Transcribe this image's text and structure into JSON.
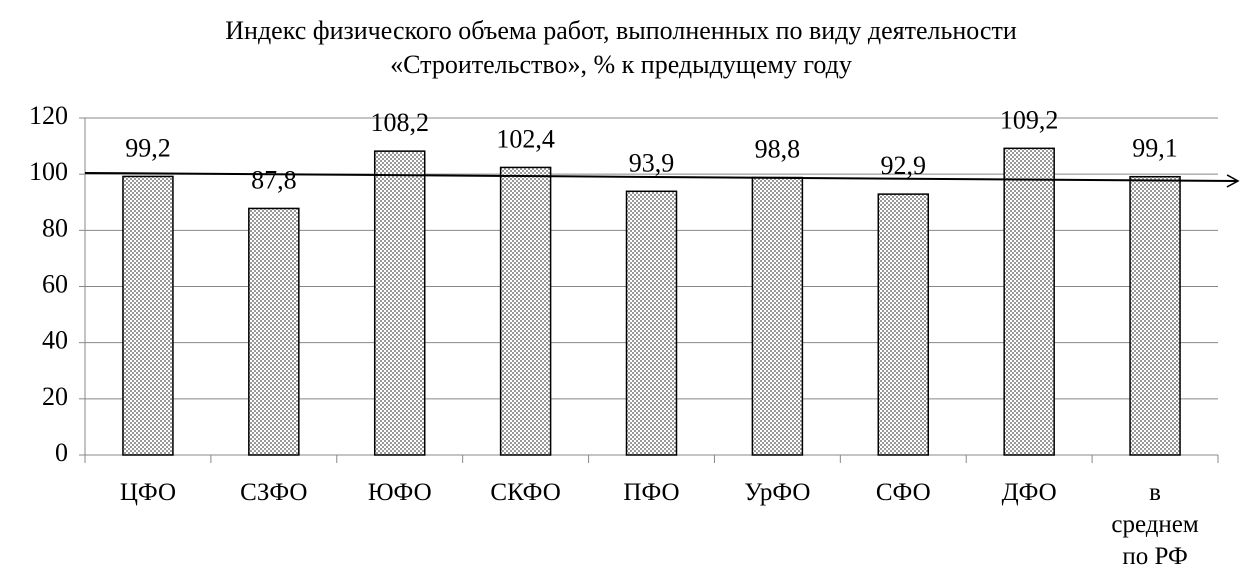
{
  "chart_data": {
    "type": "bar",
    "title": "Индекс физического объема работ, выполненных по виду деятельности «Строительство», % к предыдущему году",
    "categories": [
      "ЦФО",
      "СЗФО",
      "ЮФО",
      "СКФО",
      "ПФО",
      "УрФО",
      "СФО",
      "ДФО",
      "в среднем по РФ"
    ],
    "values": [
      99.2,
      87.8,
      108.2,
      102.4,
      93.9,
      98.8,
      92.9,
      109.2,
      99.1
    ],
    "value_labels": [
      "99,2",
      "87,8",
      "108,2",
      "102,4",
      "93,9",
      "98,8",
      "92,9",
      "109,2",
      "99,1"
    ],
    "color": "#9a9a9a",
    "ylim": [
      0,
      120
    ],
    "yticks": [
      0,
      20,
      40,
      60,
      80,
      100,
      120
    ],
    "grid": true
  }
}
